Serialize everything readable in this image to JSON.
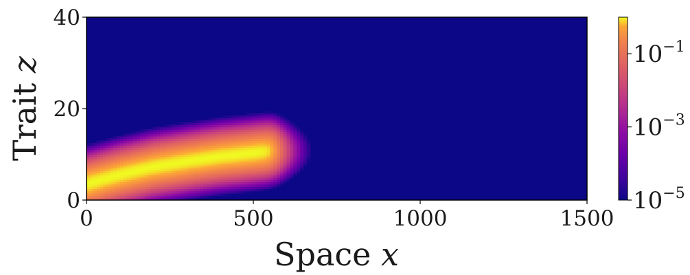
{
  "chart_data": {
    "type": "heatmap",
    "xlabel": {
      "text": "Space ",
      "var": "x"
    },
    "ylabel": {
      "text": "Trait ",
      "var": "z"
    },
    "xlim": [
      0,
      1500
    ],
    "ylim": [
      0,
      40
    ],
    "x_ticks": [
      {
        "value": 0,
        "label": "0"
      },
      {
        "value": 500,
        "label": "500"
      },
      {
        "value": 1000,
        "label": "1000"
      },
      {
        "value": 1500,
        "label": "1500"
      }
    ],
    "y_ticks": [
      {
        "value": 0,
        "label": "0"
      },
      {
        "value": 20,
        "label": "20"
      },
      {
        "value": 40,
        "label": "40"
      }
    ],
    "colorbar": {
      "scale": "log",
      "colormap": "plasma",
      "range": [
        1e-05,
        1
      ],
      "ticks": [
        {
          "value": 1e-05,
          "base": "10",
          "exp": "−5"
        },
        {
          "value": 0.001,
          "base": "10",
          "exp": "−3"
        },
        {
          "value": 0.1,
          "base": "10",
          "exp": "−1"
        }
      ]
    },
    "background_color": "#0c0786",
    "density_ridge": {
      "z_mean": [
        {
          "x": 0,
          "z": 3.6
        },
        {
          "x": 100,
          "z": 5.6
        },
        {
          "x": 200,
          "z": 7.3
        },
        {
          "x": 300,
          "z": 8.5
        },
        {
          "x": 400,
          "z": 9.6
        },
        {
          "x": 500,
          "z": 10.4
        },
        {
          "x": 560,
          "z": 10.9
        }
      ],
      "front_x": 560,
      "peak_density": 1,
      "z_spread": 1.8,
      "front_spread": 10
    }
  }
}
